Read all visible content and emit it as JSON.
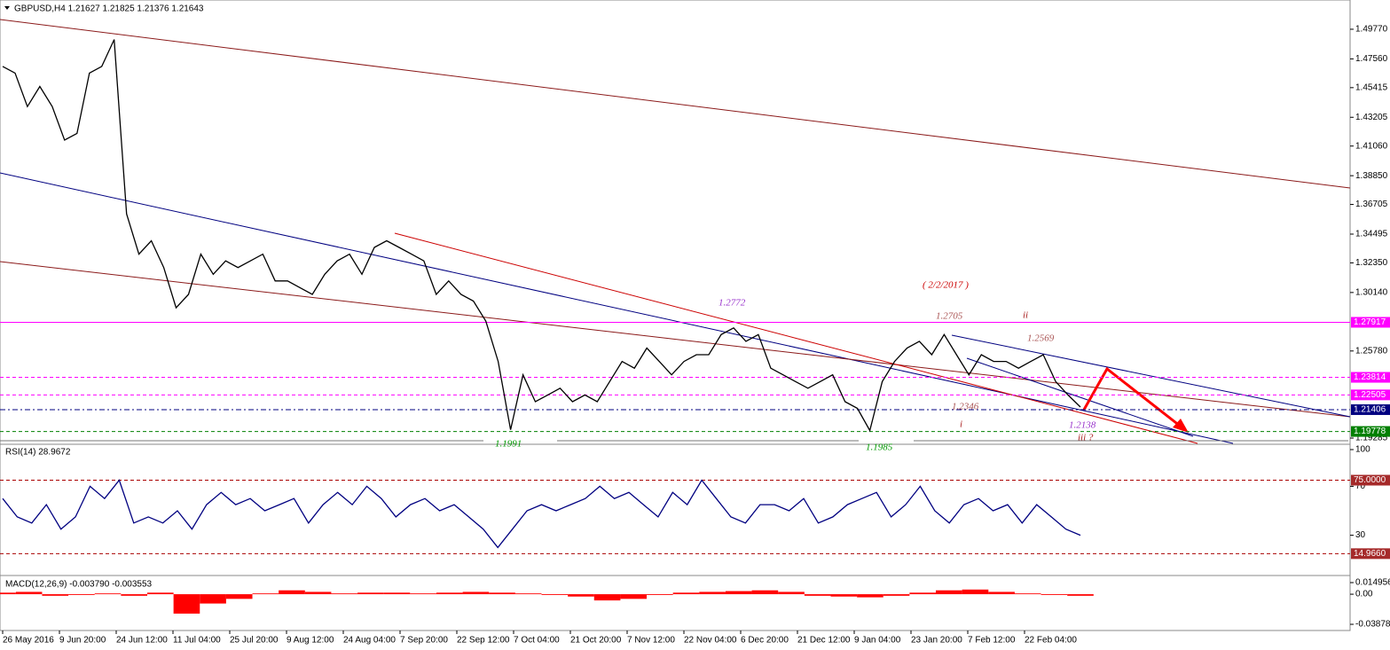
{
  "header": {
    "title": "GBPUSD,H4  1.21627 1.21825 1.21376 1.21643"
  },
  "price_panel": {
    "ylim": [
      1.1889,
      1.5195
    ],
    "yticks": [
      {
        "value": 1.4977,
        "label": "1.49770"
      },
      {
        "value": 1.4756,
        "label": "1.47560"
      },
      {
        "value": 1.45415,
        "label": "1.45415"
      },
      {
        "value": 1.43205,
        "label": "1.43205"
      },
      {
        "value": 1.4106,
        "label": "1.41060"
      },
      {
        "value": 1.3885,
        "label": "1.38850"
      },
      {
        "value": 1.36705,
        "label": "1.36705"
      },
      {
        "value": 1.34495,
        "label": "1.34495"
      },
      {
        "value": 1.3235,
        "label": "1.32350"
      },
      {
        "value": 1.3014,
        "label": "1.30140"
      },
      {
        "value": 1.2578,
        "label": "1.25780"
      },
      {
        "value": 1.19285,
        "label": "1.19285"
      }
    ],
    "levels": [
      {
        "value": 1.27917,
        "label": "1.27917",
        "color": "#ff00ff",
        "style": "solid"
      },
      {
        "value": 1.23814,
        "label": "1.23814",
        "color": "#ff00ff",
        "style": "dashed"
      },
      {
        "value": 1.22505,
        "label": "1.22505",
        "color": "#ff00ff",
        "style": "dashed"
      },
      {
        "value": 1.21406,
        "label": "1.21406",
        "color": "#000080",
        "style": "dashdot"
      },
      {
        "value": 1.19778,
        "label": "1.19778",
        "color": "#008000",
        "style": "dashed"
      }
    ],
    "close": [
      1.47,
      1.465,
      1.44,
      1.455,
      1.44,
      1.415,
      1.42,
      1.465,
      1.47,
      1.49,
      1.36,
      1.33,
      1.34,
      1.32,
      1.29,
      1.3,
      1.33,
      1.315,
      1.325,
      1.32,
      1.325,
      1.33,
      1.31,
      1.31,
      1.305,
      1.3,
      1.315,
      1.325,
      1.33,
      1.315,
      1.335,
      1.34,
      1.335,
      1.33,
      1.325,
      1.3,
      1.31,
      1.3,
      1.295,
      1.28,
      1.25,
      1.1991,
      1.24,
      1.22,
      1.225,
      1.23,
      1.22,
      1.225,
      1.22,
      1.235,
      1.25,
      1.245,
      1.26,
      1.25,
      1.24,
      1.25,
      1.255,
      1.255,
      1.27,
      1.275,
      1.265,
      1.27,
      1.245,
      1.24,
      1.235,
      1.23,
      1.235,
      1.24,
      1.22,
      1.215,
      1.1985,
      1.235,
      1.25,
      1.26,
      1.265,
      1.255,
      1.27,
      1.255,
      1.24,
      1.255,
      1.25,
      1.25,
      1.245,
      1.25,
      1.255,
      1.235,
      1.225,
      1.216
    ],
    "annotations": [
      {
        "text": "1.2772",
        "color": "#9933cc"
      },
      {
        "text": "( 2/2/2017 )",
        "color": "#cc0000"
      },
      {
        "text": "ii",
        "color": "#aa2222"
      },
      {
        "text": "1.2705",
        "color": "#aa5555"
      },
      {
        "text": "1.2569",
        "color": "#aa5555"
      },
      {
        "text": "1.2346",
        "color": "#aa5555"
      },
      {
        "text": "i",
        "color": "#aa2222"
      },
      {
        "text": "1.2138",
        "color": "#9933cc"
      },
      {
        "text": "iii ?",
        "color": "#aa2222"
      },
      {
        "text": "1.1991",
        "color": "#009900"
      },
      {
        "text": "1.1985",
        "color": "#009900"
      }
    ]
  },
  "rsi_panel": {
    "title": "RSI(14) 28.9672",
    "ylim": [
      0,
      100
    ],
    "yticks": [
      100,
      70,
      30
    ],
    "levels": [
      {
        "value": 75,
        "label": "75.0000"
      },
      {
        "value": 14.966,
        "label": "14.9660"
      }
    ],
    "color": "#000080",
    "values": [
      60,
      45,
      40,
      55,
      35,
      45,
      70,
      60,
      75,
      40,
      45,
      40,
      50,
      35,
      55,
      65,
      55,
      60,
      50,
      55,
      60,
      40,
      55,
      65,
      55,
      70,
      60,
      45,
      55,
      60,
      50,
      55,
      45,
      35,
      20,
      35,
      50,
      55,
      50,
      55,
      60,
      70,
      60,
      65,
      55,
      45,
      65,
      55,
      75,
      60,
      45,
      40,
      55,
      55,
      50,
      60,
      40,
      45,
      55,
      60,
      65,
      45,
      55,
      70,
      50,
      40,
      55,
      60,
      50,
      55,
      40,
      55,
      45,
      35,
      30
    ]
  },
  "macd_panel": {
    "title": "MACD(12,26,9) -0.003790 -0.003553",
    "ylim": [
      -0.0456,
      0.0218
    ],
    "yticks": [
      {
        "value": 0.014956,
        "label": "0.014956"
      },
      {
        "value": 0,
        "label": "0.00"
      },
      {
        "value": -0.038781,
        "label": "-0.038781"
      }
    ],
    "color": "#ff0000",
    "values": [
      0.002,
      0.003,
      -0.002,
      -0.001,
      0.001,
      -0.002,
      0.002,
      -0.025,
      -0.012,
      -0.006,
      0.001,
      0.005,
      0.003,
      0.001,
      0.002,
      0.002,
      0.001,
      0.002,
      0.003,
      0.002,
      0.001,
      -0.001,
      -0.003,
      -0.008,
      -0.006,
      -0.001,
      0.002,
      0.003,
      0.004,
      0.005,
      0.003,
      -0.002,
      -0.003,
      -0.004,
      -0.002,
      0.002,
      0.005,
      0.006,
      0.003,
      0.001,
      -0.001,
      -0.002
    ]
  },
  "time_axis": {
    "labels": [
      "26 May 2016",
      "9 Jun 20:00",
      "24 Jun 12:00",
      "11 Jul 04:00",
      "25 Jul 20:00",
      "9 Aug 12:00",
      "24 Aug 04:00",
      "7 Sep 20:00",
      "22 Sep 12:00",
      "7 Oct 04:00",
      "21 Oct 20:00",
      "7 Nov 12:00",
      "22 Nov 04:00",
      "6 Dec 20:00",
      "21 Dec 12:00",
      "9 Jan 04:00",
      "23 Jan 20:00",
      "7 Feb 12:00",
      "22 Feb 04:00"
    ]
  }
}
